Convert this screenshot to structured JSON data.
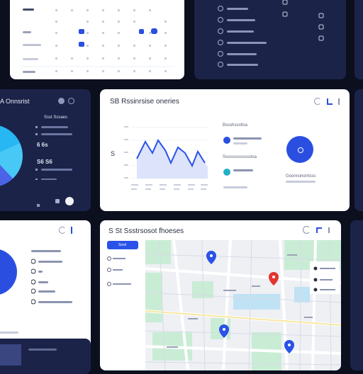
{
  "card_mid_center": {
    "title": "SB Rssinrsise oneries",
    "sidebar_a": "Bssshsssttsa",
    "sidebar_b": "Ssssssssssssstsa",
    "side_right": "Goonrsinorrtsss",
    "y_axis_mark": "S"
  },
  "card_mid_left": {
    "title": "A Onnsrist",
    "row_1": "Ssst Sssaes",
    "row_2": "6 6s",
    "row_3": "S6 S6"
  },
  "card_bottom_center": {
    "title": "S St Ssstrsosot fhoeses",
    "search_button": "Sosrl"
  },
  "colors": {
    "accent": "#2a4fe0",
    "dark_panel": "#1b2348",
    "map_park": "#c9ecd5",
    "map_water": "#bfe2f4",
    "pin_blue": "#2a52e8",
    "pin_red": "#e3342f"
  }
}
